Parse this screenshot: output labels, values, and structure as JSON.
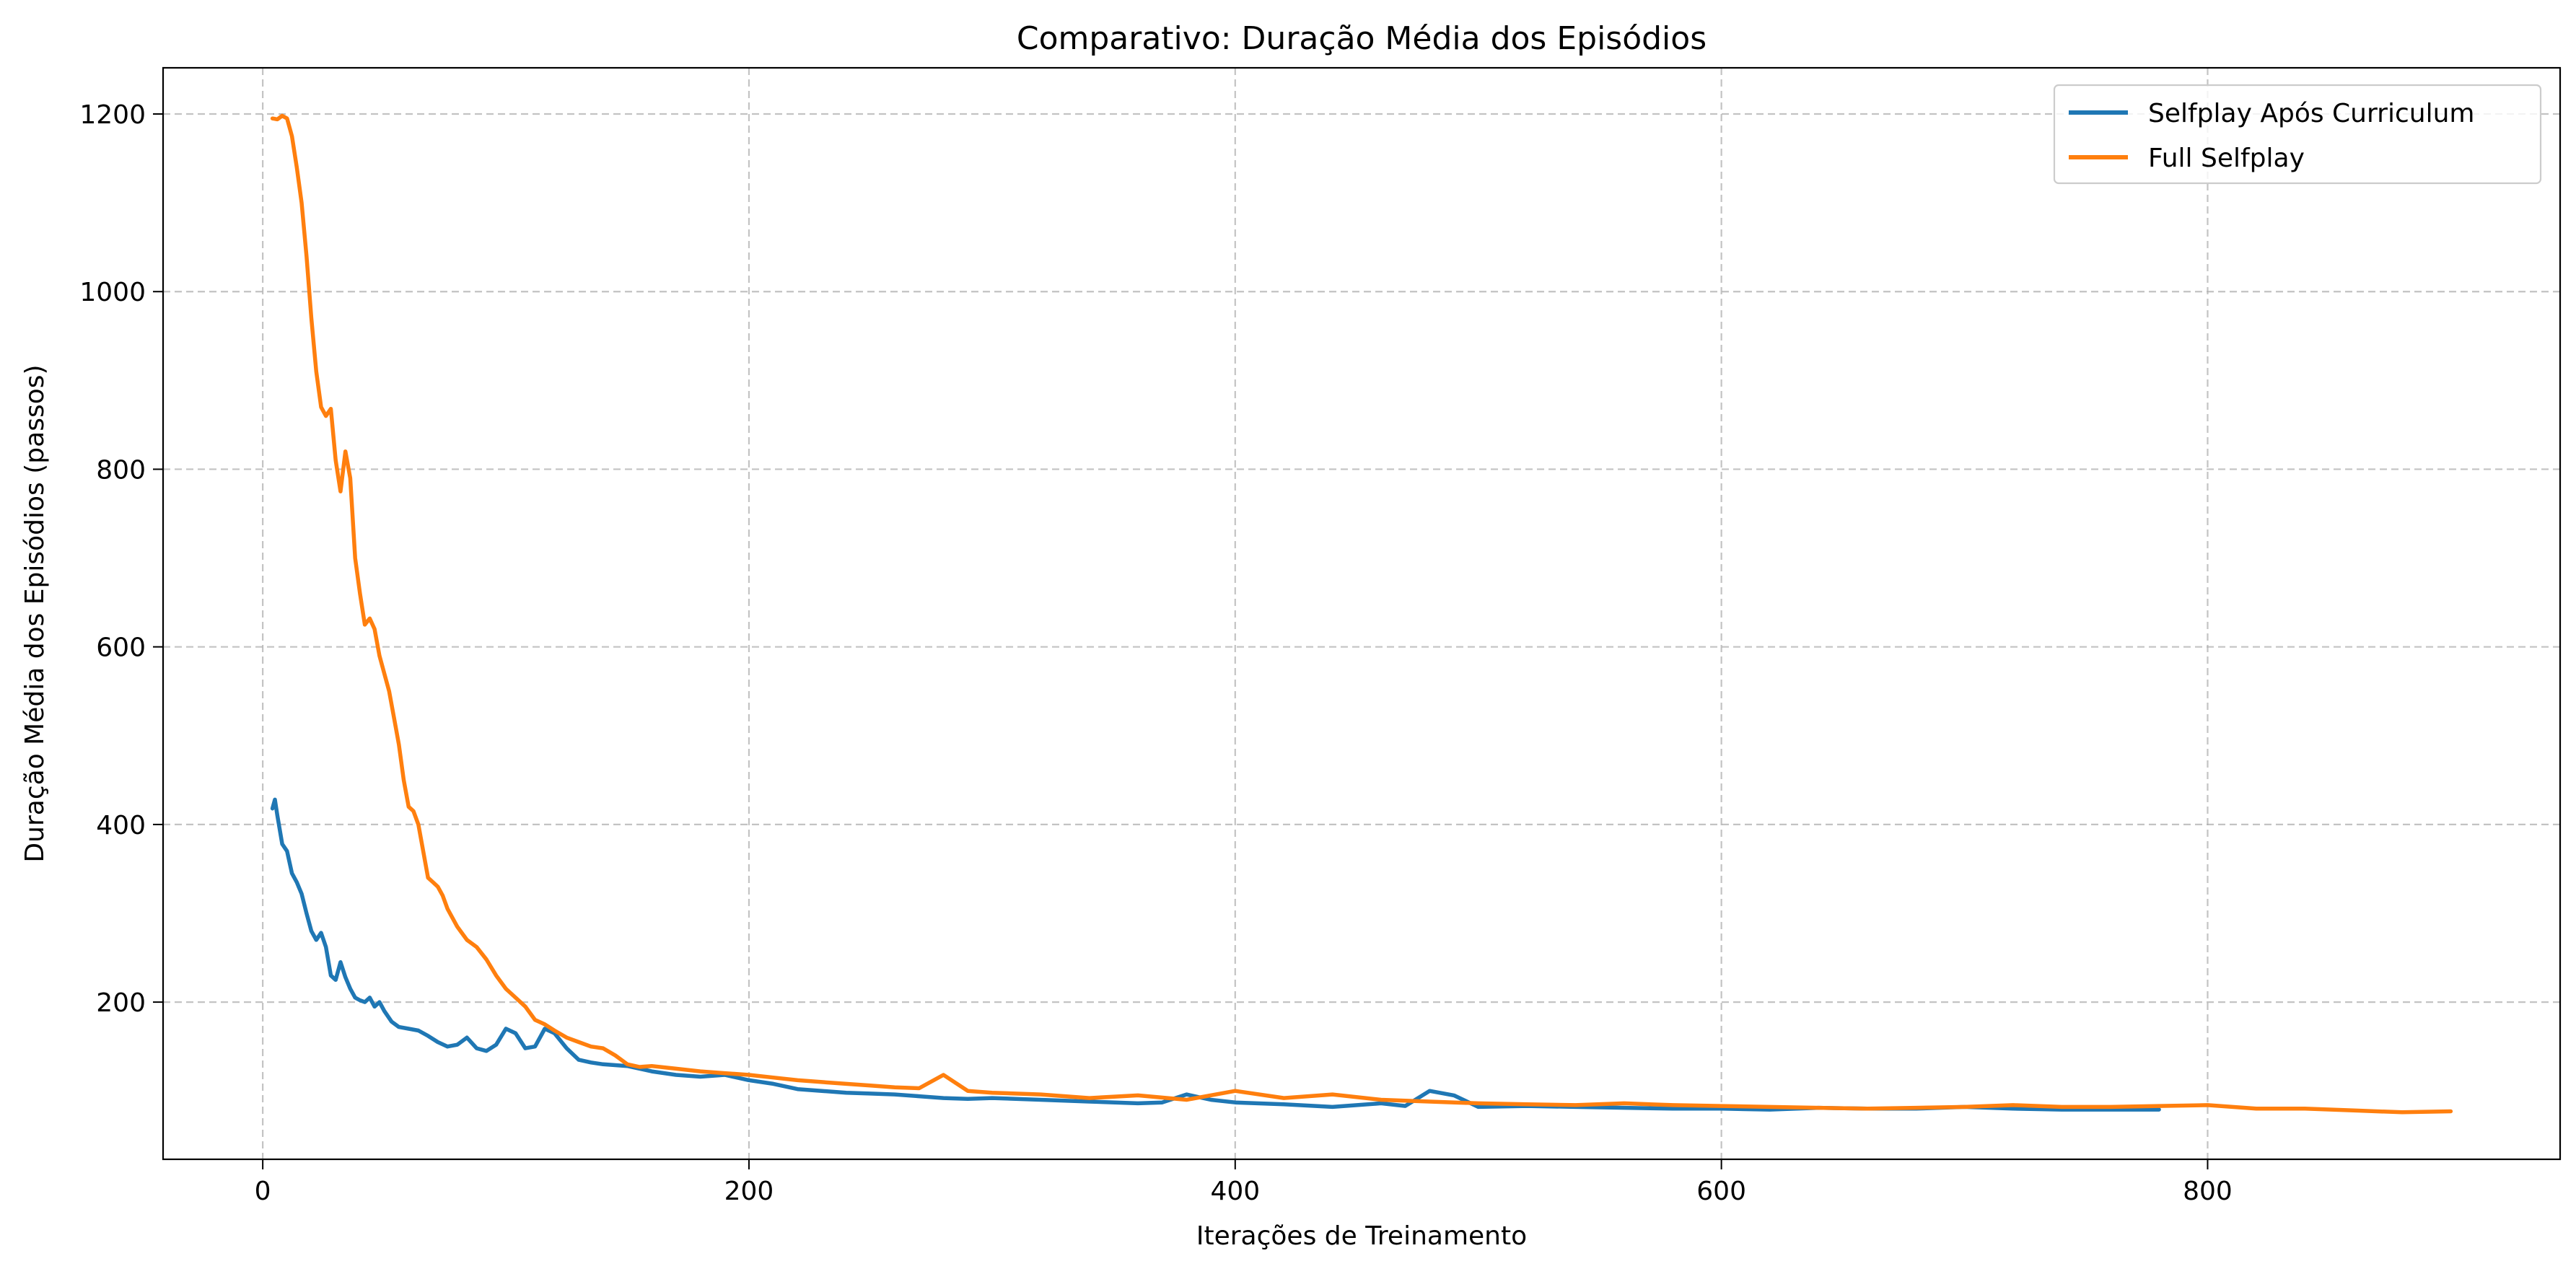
{
  "chart_data": {
    "type": "line",
    "title": "Comparativo: Duração Média dos Episódios",
    "xlabel": "Iterações de Treinamento",
    "ylabel": "Duração Média dos Episódios (passos)",
    "xlim": [
      -41,
      945
    ],
    "ylim": [
      23,
      1252
    ],
    "xticks": [
      0,
      200,
      400,
      600,
      800
    ],
    "yticks": [
      200,
      400,
      600,
      800,
      1000,
      1200
    ],
    "grid": true,
    "legend_position": "top-right",
    "series": [
      {
        "name": "Selfplay Após Curriculum",
        "color": "#1f77b4",
        "x": [
          4,
          5,
          6,
          8,
          10,
          12,
          14,
          16,
          18,
          20,
          22,
          24,
          26,
          28,
          30,
          32,
          34,
          36,
          38,
          40,
          42,
          44,
          46,
          48,
          50,
          53,
          56,
          60,
          64,
          68,
          72,
          76,
          80,
          84,
          88,
          92,
          96,
          100,
          104,
          108,
          112,
          116,
          120,
          125,
          130,
          135,
          140,
          150,
          160,
          170,
          180,
          190,
          200,
          210,
          220,
          230,
          240,
          250,
          260,
          270,
          280,
          290,
          300,
          320,
          340,
          360,
          370,
          380,
          390,
          400,
          420,
          440,
          460,
          470,
          480,
          490,
          500,
          520,
          540,
          560,
          580,
          600,
          620,
          640,
          660,
          680,
          700,
          720,
          740,
          760,
          780
        ],
        "values": [
          418,
          428,
          410,
          378,
          370,
          345,
          335,
          322,
          300,
          280,
          270,
          278,
          262,
          230,
          225,
          245,
          228,
          215,
          205,
          202,
          200,
          205,
          195,
          200,
          190,
          178,
          172,
          170,
          168,
          162,
          155,
          150,
          152,
          160,
          148,
          145,
          152,
          170,
          165,
          148,
          150,
          170,
          165,
          148,
          135,
          132,
          130,
          128,
          122,
          118,
          116,
          118,
          112,
          108,
          102,
          100,
          98,
          97,
          96,
          94,
          92,
          91,
          92,
          90,
          88,
          86,
          87,
          96,
          90,
          87,
          85,
          82,
          86,
          83,
          100,
          95,
          82,
          83,
          82,
          81,
          80,
          80,
          79,
          81,
          80,
          80,
          82,
          80,
          79,
          79,
          79
        ]
      },
      {
        "name": "Full Selfplay",
        "color": "#ff7f0e",
        "x": [
          4,
          6,
          8,
          10,
          12,
          14,
          16,
          18,
          20,
          22,
          24,
          26,
          28,
          30,
          32,
          34,
          36,
          38,
          40,
          42,
          44,
          46,
          48,
          50,
          52,
          54,
          56,
          58,
          60,
          62,
          64,
          66,
          68,
          70,
          72,
          74,
          76,
          78,
          80,
          84,
          88,
          92,
          96,
          100,
          104,
          108,
          112,
          116,
          120,
          125,
          130,
          135,
          140,
          145,
          150,
          155,
          160,
          170,
          180,
          190,
          200,
          210,
          220,
          230,
          240,
          250,
          260,
          270,
          280,
          290,
          300,
          320,
          340,
          360,
          380,
          400,
          420,
          440,
          460,
          480,
          500,
          520,
          540,
          560,
          580,
          600,
          620,
          640,
          660,
          680,
          700,
          720,
          740,
          760,
          780,
          800,
          820,
          840,
          860,
          880,
          900
        ],
        "values": [
          1195,
          1194,
          1198,
          1195,
          1175,
          1140,
          1100,
          1040,
          970,
          910,
          870,
          860,
          868,
          810,
          775,
          820,
          790,
          700,
          660,
          625,
          632,
          620,
          590,
          570,
          550,
          520,
          490,
          450,
          420,
          415,
          400,
          370,
          340,
          335,
          330,
          320,
          305,
          295,
          285,
          270,
          262,
          248,
          230,
          215,
          205,
          195,
          180,
          175,
          168,
          160,
          155,
          150,
          148,
          140,
          130,
          127,
          128,
          125,
          122,
          120,
          118,
          115,
          112,
          110,
          108,
          106,
          104,
          103,
          118,
          100,
          98,
          96,
          92,
          95,
          90,
          100,
          92,
          96,
          90,
          88,
          86,
          85,
          84,
          86,
          84,
          83,
          82,
          81,
          80,
          81,
          82,
          84,
          82,
          82,
          83,
          84,
          80,
          80,
          78,
          76,
          77
        ]
      }
    ]
  }
}
